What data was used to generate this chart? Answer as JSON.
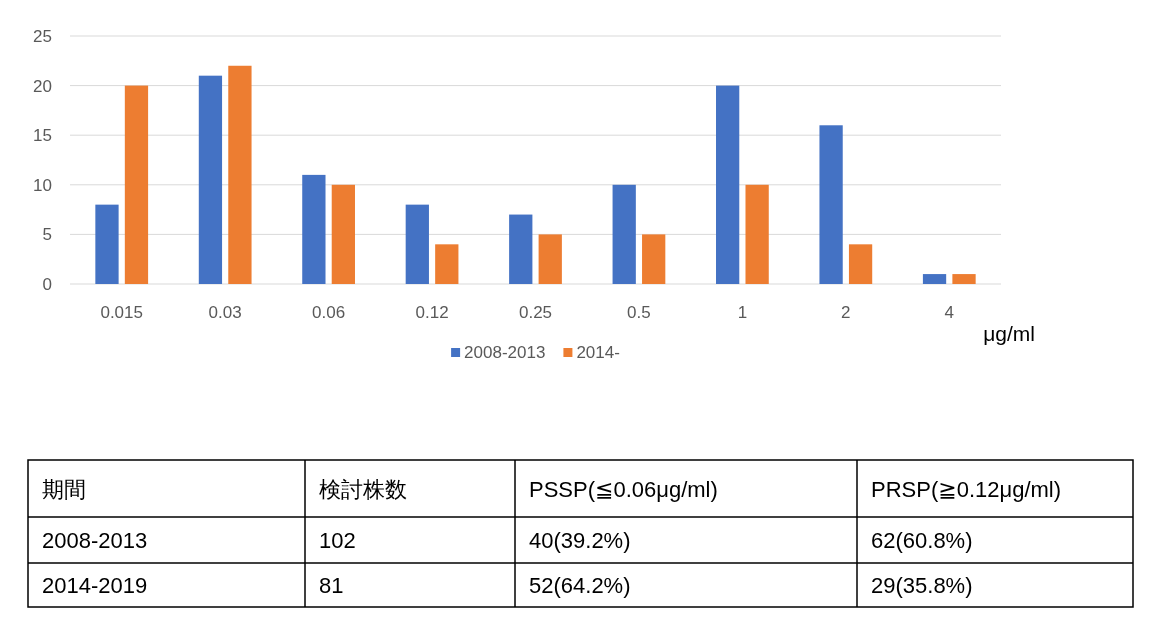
{
  "chart_data": [
    {
      "type": "bar",
      "categories": [
        "0.015",
        "0.03",
        "0.06",
        "0.12",
        "0.25",
        "0.5",
        "1",
        "2",
        "4"
      ],
      "series": [
        {
          "name": "2008-2013",
          "color": "#4472c4",
          "values": [
            8,
            21,
            11,
            8,
            7,
            10,
            20,
            16,
            1
          ]
        },
        {
          "name": "2014-",
          "color": "#ed7d31",
          "values": [
            20,
            22,
            10,
            4,
            5,
            5,
            10,
            4,
            1
          ]
        }
      ],
      "xlabel": "μg/ml",
      "ylim": [
        0,
        25
      ],
      "yticks": [
        0,
        5,
        10,
        15,
        20,
        25
      ],
      "grid": "y",
      "legend": "bottom"
    },
    {
      "type": "other",
      "annotations": [
        "期間",
        "検討株数",
        "PSSP(≦0.06μg/ml)",
        "PRSP(≧0.12μg/ml)",
        "2008-2013",
        "102",
        "40(39.2%)",
        "62(60.8%)",
        "2014-2019",
        "81",
        "52(64.2%)",
        "29(35.8%)"
      ]
    }
  ]
}
